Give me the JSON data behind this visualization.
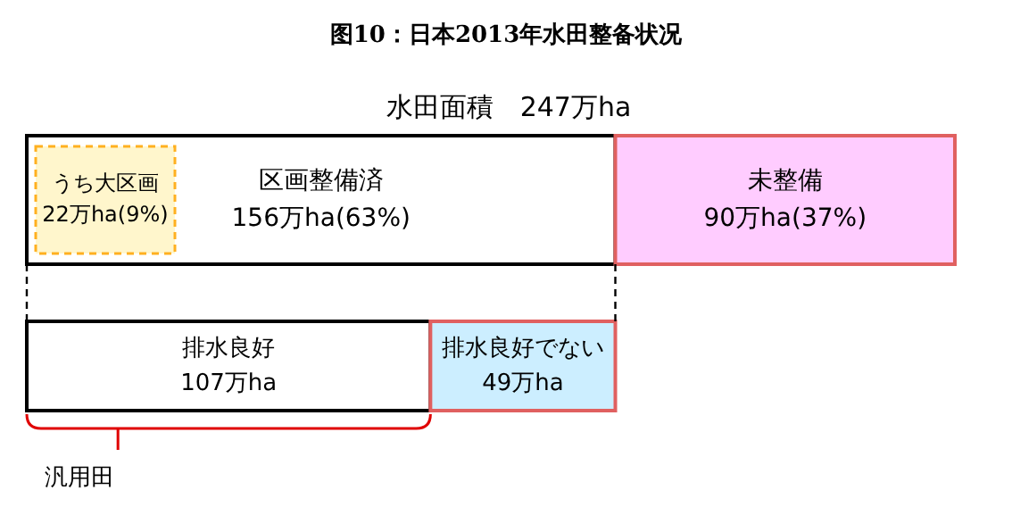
{
  "chart_data": [
    {
      "type": "bar",
      "orientation": "horizontal",
      "stacked": true,
      "title": "图10：日本2013年水田整备状况",
      "subtitle": "水田面積　247万ha",
      "categories": [
        null
      ],
      "tick_labels": false,
      "annotations": [
        "うち大区画\n22万ha(9%)"
      ],
      "series": [
        {
          "name": "区画整備済",
          "color": "#ffffff",
          "values": [
            156
          ],
          "value_labels": [
            "156万ha(63%)"
          ]
        },
        {
          "name": "未整備",
          "color": "#ffccff",
          "values": [
            90
          ],
          "value_labels": [
            "90万ha(37%)"
          ]
        }
      ]
    },
    {
      "type": "bar",
      "orientation": "horizontal",
      "stacked": true,
      "categories": [
        null
      ],
      "tick_labels": false,
      "annotations": [
        "汎用田"
      ],
      "series": [
        {
          "name": "排水良好",
          "color": "#ffffff",
          "values": [
            107
          ],
          "value_labels": [
            "107万ha"
          ]
        },
        {
          "name": "排水良好でない",
          "color": "#cceeff",
          "values": [
            49
          ],
          "value_labels": [
            "49万ha"
          ]
        }
      ]
    }
  ]
}
